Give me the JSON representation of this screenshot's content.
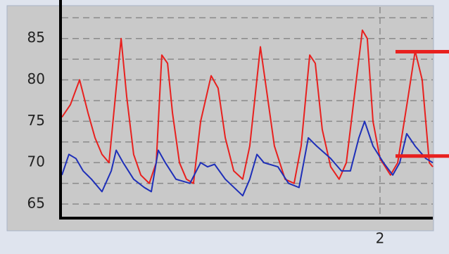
{
  "chart_data": {
    "type": "line",
    "xlim": [
      0,
      2.332
    ],
    "xticks": [
      2
    ],
    "ylim": [
      63.3,
      88.8
    ],
    "yticks": [
      65,
      70,
      75,
      80,
      85
    ],
    "minor_yticks": [
      67.5,
      72.5,
      77.5,
      82.5,
      87.5
    ],
    "grid": true,
    "series": [
      {
        "color": "#e8201e",
        "x": [
          0,
          0.053,
          0.111,
          0.164,
          0.208,
          0.252,
          0.296,
          0.341,
          0.372,
          0.407,
          0.451,
          0.496,
          0.549,
          0.593,
          0.628,
          0.664,
          0.695,
          0.739,
          0.783,
          0.827,
          0.872,
          0.938,
          0.982,
          1.027,
          1.08,
          1.137,
          1.181,
          1.248,
          1.292,
          1.336,
          1.403,
          1.46,
          1.504,
          1.558,
          1.593,
          1.637,
          1.69,
          1.743,
          1.788,
          1.845,
          1.889,
          1.92,
          1.956,
          2.0,
          2.066,
          2.111,
          2.177,
          2.221,
          2.265,
          2.31,
          2.332
        ],
        "values": [
          75.5,
          77,
          80,
          76,
          73,
          71,
          70,
          79,
          85,
          78,
          71,
          68.5,
          67.5,
          70,
          83,
          82,
          76,
          70,
          68,
          67.5,
          75,
          80.5,
          79,
          73,
          69,
          68,
          72,
          84,
          78,
          72,
          68,
          67.5,
          72,
          83,
          82,
          74,
          69.5,
          68,
          70,
          79,
          86,
          85,
          75,
          70.5,
          68.5,
          70,
          78,
          83.5,
          80,
          70,
          69.5
        ]
      },
      {
        "color": "#1e2fb8",
        "x": [
          0,
          0.044,
          0.088,
          0.133,
          0.186,
          0.252,
          0.31,
          0.341,
          0.385,
          0.451,
          0.518,
          0.562,
          0.606,
          0.65,
          0.717,
          0.805,
          0.872,
          0.916,
          0.96,
          1.027,
          1.137,
          1.181,
          1.226,
          1.27,
          1.358,
          1.425,
          1.491,
          1.549,
          1.602,
          1.69,
          1.757,
          1.814,
          1.867,
          1.903,
          1.956,
          2.022,
          2.08,
          2.124,
          2.168,
          2.221,
          2.288,
          2.332
        ],
        "values": [
          68.5,
          71,
          70.5,
          69,
          68,
          66.5,
          69,
          71.5,
          70,
          68,
          67,
          66.5,
          71.5,
          70,
          68,
          67.5,
          70,
          69.5,
          69.8,
          68,
          66,
          68,
          71,
          70,
          69.5,
          67.5,
          67,
          73,
          72,
          70.5,
          69,
          69,
          73,
          75,
          72,
          70,
          68.5,
          70,
          73.5,
          72,
          70.5,
          70
        ]
      }
    ],
    "level_markers": [
      {
        "color": "#e8201e",
        "value": 83.4
      },
      {
        "color": "#e8201e",
        "value": 70.8
      }
    ]
  }
}
